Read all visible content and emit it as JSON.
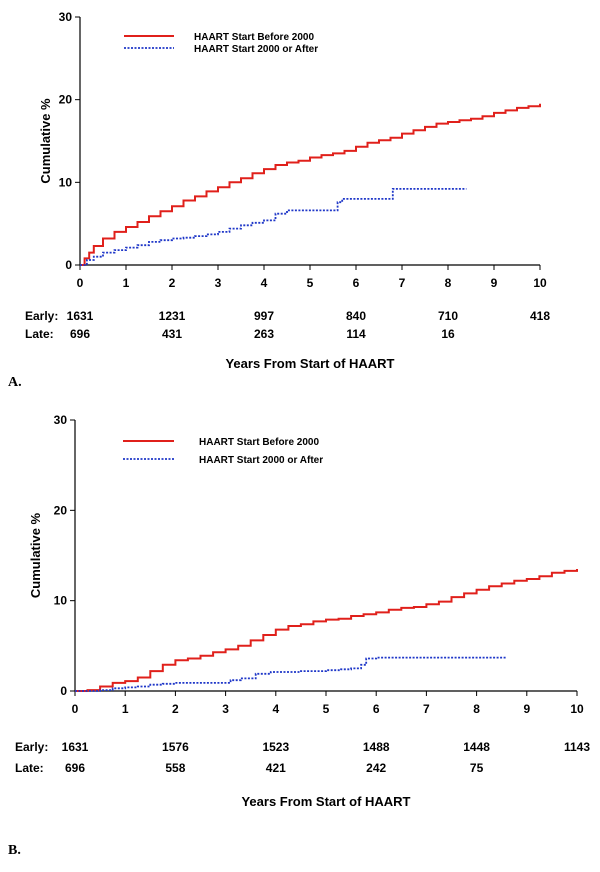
{
  "chart_data": [
    {
      "type": "line",
      "panel_label": "A.",
      "xlabel": "Years From Start of HAART",
      "ylabel": "Cumulative %",
      "xlim": [
        0,
        10
      ],
      "ylim": [
        0,
        30
      ],
      "xticks": [
        0,
        1,
        2,
        3,
        4,
        5,
        6,
        7,
        8,
        9,
        10
      ],
      "yticks": [
        0,
        10,
        20,
        30
      ],
      "legend_position": "top-left",
      "series": [
        {
          "name": "HAART Start Before 2000",
          "color": "#e0201b",
          "style": "solid",
          "x": [
            0,
            0.1,
            0.2,
            0.3,
            0.5,
            0.75,
            1,
            1.25,
            1.5,
            1.75,
            2,
            2.25,
            2.5,
            2.75,
            3,
            3.25,
            3.5,
            3.75,
            4,
            4.25,
            4.5,
            4.75,
            5,
            5.25,
            5.5,
            5.75,
            6,
            6.25,
            6.5,
            6.75,
            7,
            7.25,
            7.5,
            7.75,
            8,
            8.25,
            8.5,
            8.75,
            9,
            9.25,
            9.5,
            9.75,
            10
          ],
          "y": [
            0,
            0.8,
            1.5,
            2.3,
            3.2,
            4.0,
            4.6,
            5.2,
            5.9,
            6.5,
            7.1,
            7.8,
            8.3,
            8.9,
            9.4,
            10.0,
            10.5,
            11.1,
            11.6,
            12.1,
            12.4,
            12.6,
            13.0,
            13.3,
            13.5,
            13.8,
            14.3,
            14.8,
            15.1,
            15.4,
            15.9,
            16.3,
            16.7,
            17.1,
            17.3,
            17.5,
            17.7,
            18.0,
            18.4,
            18.7,
            19.0,
            19.2,
            19.5
          ]
        },
        {
          "name": "HAART Start 2000 or After",
          "color": "#1f37c8",
          "style": "dotted",
          "x": [
            0,
            0.15,
            0.3,
            0.5,
            0.75,
            1,
            1.25,
            1.5,
            1.75,
            2,
            2.25,
            2.5,
            2.75,
            3,
            3.25,
            3.5,
            3.75,
            4,
            4.25,
            4.5,
            4.75,
            5,
            5.25,
            5.5,
            5.6,
            5.7,
            6.0,
            6.5,
            6.75,
            6.8,
            7.0,
            7.5,
            8.0,
            8.4
          ],
          "y": [
            0,
            0.6,
            1.0,
            1.5,
            1.8,
            2.1,
            2.4,
            2.8,
            3.0,
            3.2,
            3.3,
            3.5,
            3.7,
            4.0,
            4.4,
            4.8,
            5.1,
            5.4,
            6.2,
            6.6,
            6.6,
            6.6,
            6.6,
            6.6,
            7.6,
            8.0,
            8.0,
            8.0,
            8.0,
            9.2,
            9.2,
            9.2,
            9.2,
            9.2
          ]
        }
      ],
      "risk_table": {
        "rows": [
          {
            "label": "Early:",
            "values": [
              "1631",
              "1231",
              "997",
              "840",
              "710",
              "418"
            ]
          },
          {
            "label": "Late:",
            "values": [
              "696",
              "431",
              "263",
              "114",
              "16"
            ]
          }
        ],
        "at_years": [
          0,
          2,
          4,
          6,
          8,
          10
        ]
      }
    },
    {
      "type": "line",
      "panel_label": "B.",
      "xlabel": "Years From Start of HAART",
      "ylabel": "Cumulative %",
      "xlim": [
        0,
        10
      ],
      "ylim": [
        0,
        30
      ],
      "xticks": [
        0,
        1,
        2,
        3,
        4,
        5,
        6,
        7,
        8,
        9,
        10
      ],
      "yticks": [
        0,
        10,
        20,
        30
      ],
      "legend_position": "top-left",
      "series": [
        {
          "name": "HAART Start Before 2000",
          "color": "#e0201b",
          "style": "solid",
          "x": [
            0,
            0.25,
            0.5,
            0.75,
            1,
            1.25,
            1.5,
            1.75,
            2,
            2.25,
            2.5,
            2.75,
            3,
            3.25,
            3.5,
            3.75,
            4,
            4.25,
            4.5,
            4.75,
            5,
            5.25,
            5.5,
            5.75,
            6,
            6.25,
            6.5,
            6.75,
            7,
            7.25,
            7.5,
            7.75,
            8,
            8.25,
            8.5,
            8.75,
            9,
            9.25,
            9.5,
            9.75,
            10
          ],
          "y": [
            0,
            0.1,
            0.5,
            0.9,
            1.1,
            1.5,
            2.2,
            2.9,
            3.4,
            3.6,
            3.9,
            4.3,
            4.6,
            5.0,
            5.6,
            6.2,
            6.8,
            7.2,
            7.4,
            7.7,
            7.9,
            8.0,
            8.3,
            8.5,
            8.7,
            9.0,
            9.2,
            9.3,
            9.6,
            9.9,
            10.4,
            10.8,
            11.2,
            11.6,
            11.9,
            12.2,
            12.4,
            12.7,
            13.1,
            13.3,
            13.5
          ]
        },
        {
          "name": "HAART Start 2000 or After",
          "color": "#1f37c8",
          "style": "dotted",
          "x": [
            0,
            0.5,
            0.75,
            1,
            1.25,
            1.5,
            1.75,
            2,
            2.5,
            2.9,
            3.1,
            3.3,
            3.6,
            3.9,
            4.5,
            5.0,
            5.3,
            5.5,
            5.7,
            5.8,
            6.0,
            7.0,
            8.0,
            8.6
          ],
          "y": [
            0,
            0.1,
            0.3,
            0.4,
            0.5,
            0.7,
            0.8,
            0.9,
            0.9,
            0.9,
            1.2,
            1.4,
            1.9,
            2.1,
            2.2,
            2.3,
            2.4,
            2.5,
            2.9,
            3.6,
            3.7,
            3.7,
            3.7,
            3.7
          ]
        }
      ],
      "risk_table": {
        "rows": [
          {
            "label": "Early:",
            "values": [
              "1631",
              "1576",
              "1523",
              "1488",
              "1448",
              "1143"
            ]
          },
          {
            "label": "Late:",
            "values": [
              "696",
              "558",
              "421",
              "242",
              "75"
            ]
          }
        ],
        "at_years": [
          0,
          2,
          4,
          6,
          8,
          10
        ]
      }
    }
  ]
}
